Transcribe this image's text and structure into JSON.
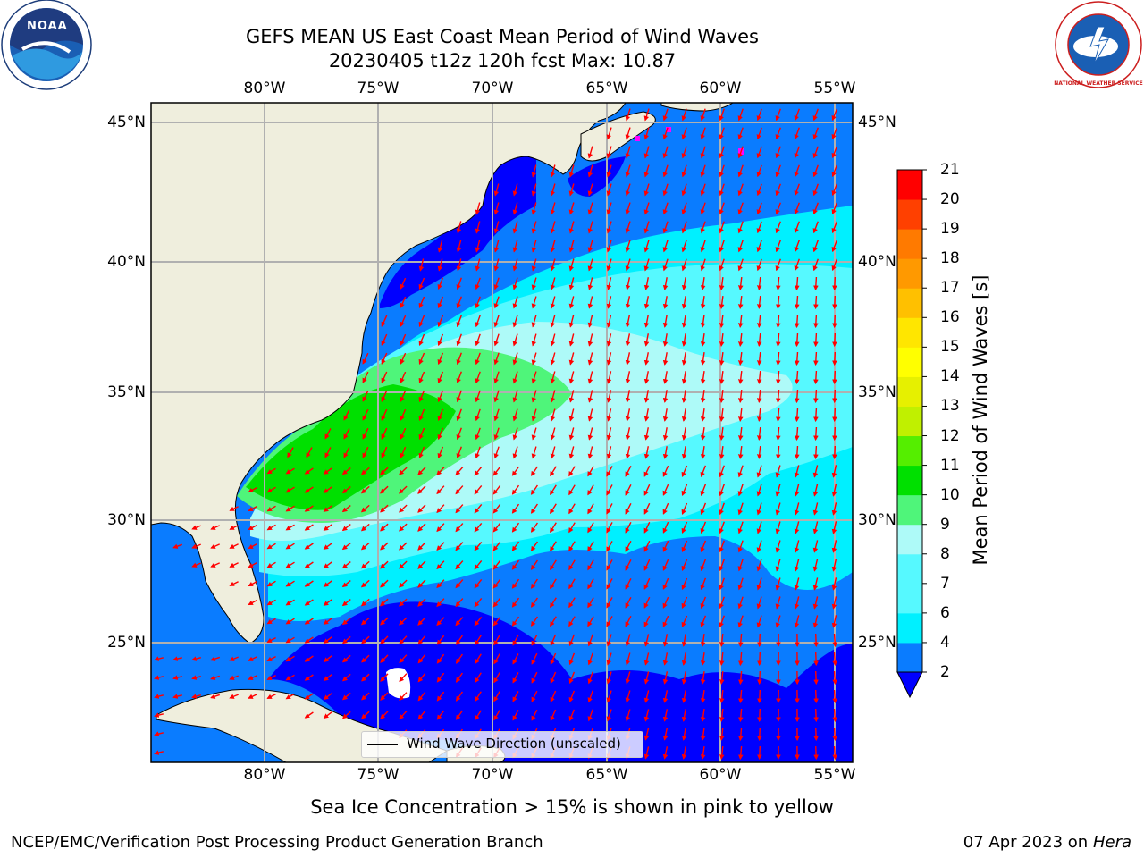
{
  "header": {
    "title_line1": "GEFS MEAN US East Coast Mean Period of Wind Waves",
    "title_line2": "20230405 t12z 120h fcst   Max: 10.87"
  },
  "logos": {
    "left": {
      "icon": "noaa-logo-icon",
      "text": "NOAA"
    },
    "right": {
      "icon": "nws-logo-icon",
      "ring_text": "NATIONAL WEATHER SERVICE"
    }
  },
  "map": {
    "lon_labels": [
      "80°W",
      "75°W",
      "70°W",
      "65°W",
      "60°W",
      "55°W"
    ],
    "lat_labels": [
      "45°N",
      "40°N",
      "35°N",
      "30°N",
      "25°N"
    ],
    "legend_label": "Wind Wave Direction (unscaled)",
    "colors": {
      "land": "#efeedd",
      "zone_2_4": "#0a7cff",
      "zone_under_2": "#0000ff",
      "zone_4_6": "#00f0ff",
      "zone_6_8": "#56f9ff",
      "zone_8_9": "#aefaf8",
      "zone_9_10": "#4ff57a",
      "zone_10_11": "#00e000",
      "arrow": "#ff0000",
      "ice": "#ff00ff"
    }
  },
  "colorbar": {
    "label": "Mean Period of Wind Waves [s]",
    "ticks": [
      "2",
      "4",
      "6",
      "7",
      "8",
      "9",
      "10",
      "11",
      "12",
      "13",
      "14",
      "15",
      "16",
      "17",
      "18",
      "19",
      "20",
      "21"
    ],
    "colors": [
      "#0a7cff",
      "#00f0ff",
      "#56f9ff",
      "#56f9ff",
      "#aefaf8",
      "#4ff57a",
      "#00e000",
      "#55ee00",
      "#c0f000",
      "#e6f000",
      "#ffff00",
      "#ffe600",
      "#ffc000",
      "#ff9900",
      "#ff7a00",
      "#ff4000",
      "#ff0000"
    ],
    "under_color": "#0000ff"
  },
  "footer": {
    "ice_note": "Sea Ice Concentration > 15% is shown in pink to yellow",
    "credit": "NCEP/EMC/Verification Post Processing Product Generation Branch",
    "date": "07 Apr 2023 on ",
    "machine": "Hera"
  }
}
